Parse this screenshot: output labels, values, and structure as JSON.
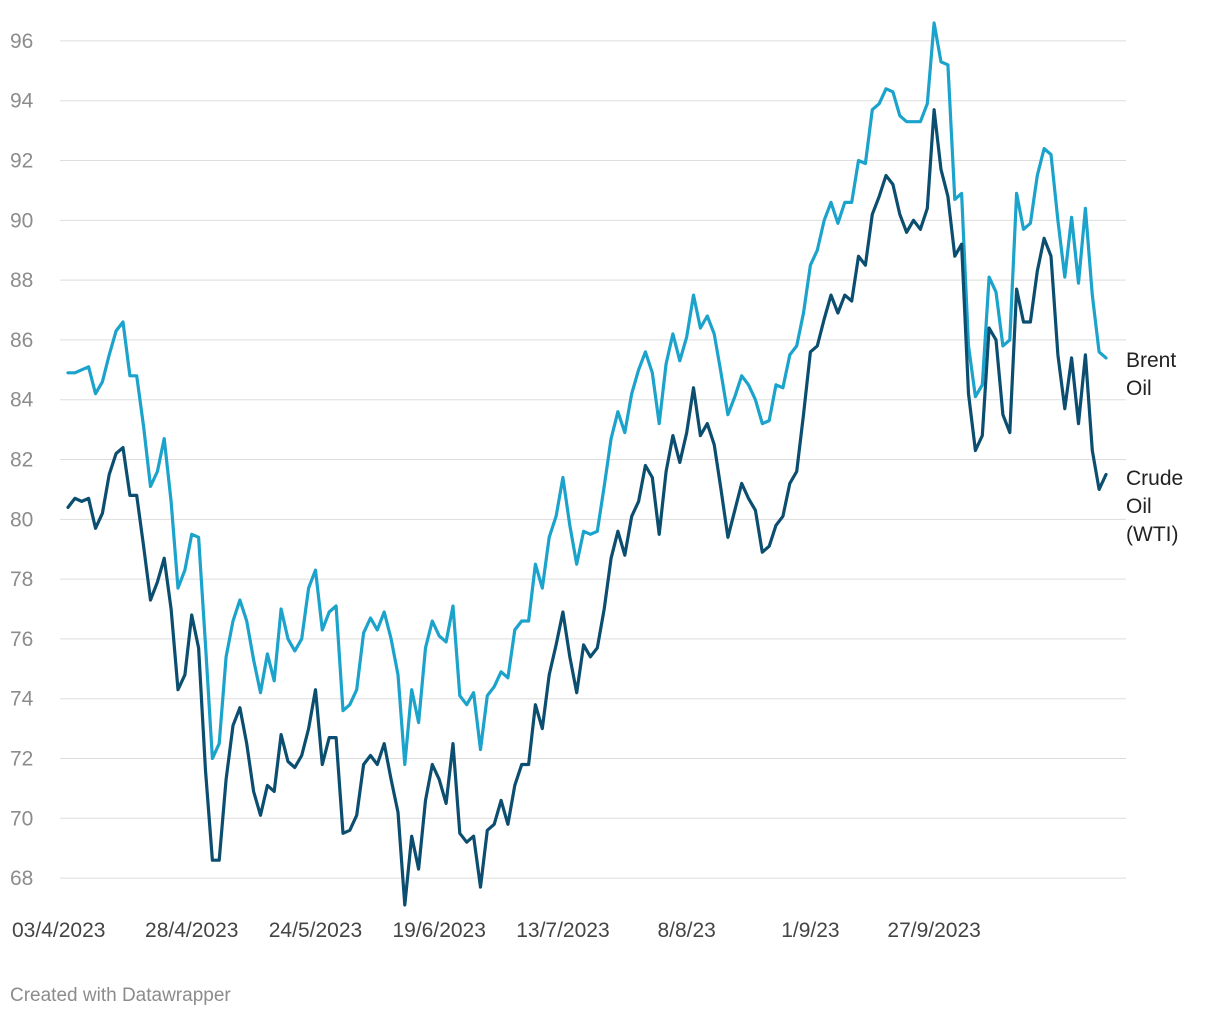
{
  "chart_data": {
    "type": "line",
    "title": "",
    "xlabel": "",
    "ylabel": "",
    "ylim": [
      67,
      96.7
    ],
    "yticks": [
      68,
      70,
      72,
      74,
      76,
      78,
      80,
      82,
      84,
      86,
      88,
      90,
      92,
      94,
      96
    ],
    "xtick_labels": [
      "03/4/2023",
      "28/4/2023",
      "24/5/2023",
      "19/6/2023",
      "13/7/2023",
      "8/8/23",
      "1/9/23",
      "27/9/2023"
    ],
    "xtick_index": [
      0,
      18,
      36,
      54,
      72,
      90,
      108,
      126
    ],
    "grid": true,
    "legend": "inline-right",
    "series": [
      {
        "name": "Brent\nOil",
        "color": "#1ba3cc",
        "values": [
          84.9,
          84.9,
          85.0,
          85.1,
          84.2,
          84.6,
          85.5,
          86.3,
          86.6,
          84.8,
          84.8,
          83.1,
          81.1,
          81.6,
          82.7,
          80.6,
          77.7,
          78.3,
          79.5,
          79.4,
          75.8,
          72.0,
          72.5,
          75.4,
          76.6,
          77.3,
          76.6,
          75.3,
          74.2,
          75.5,
          74.6,
          77.0,
          76.0,
          75.6,
          76.0,
          77.7,
          78.3,
          76.3,
          76.9,
          77.1,
          73.6,
          73.8,
          74.3,
          76.2,
          76.7,
          76.3,
          76.9,
          76.0,
          74.8,
          71.8,
          74.3,
          73.2,
          75.7,
          76.6,
          76.1,
          75.9,
          77.1,
          74.1,
          73.8,
          74.2,
          72.3,
          74.1,
          74.4,
          74.9,
          74.7,
          76.3,
          76.6,
          76.6,
          78.5,
          77.7,
          79.4,
          80.1,
          81.4,
          79.8,
          78.5,
          79.6,
          79.5,
          79.6,
          81.1,
          82.7,
          83.6,
          82.9,
          84.2,
          85.0,
          85.6,
          84.9,
          83.2,
          85.2,
          86.2,
          85.3,
          86.1,
          87.5,
          86.4,
          86.8,
          86.2,
          84.9,
          83.5,
          84.1,
          84.8,
          84.5,
          84.0,
          83.2,
          83.3,
          84.5,
          84.4,
          85.5,
          85.8,
          86.9,
          88.5,
          89.0,
          90.0,
          90.6,
          89.9,
          90.6,
          90.6,
          92.0,
          91.9,
          93.7,
          93.9,
          94.4,
          94.3,
          93.5,
          93.3,
          93.3,
          93.3,
          93.9,
          96.6,
          95.3,
          95.2,
          90.7,
          90.9,
          85.8,
          84.1,
          84.5,
          88.1,
          87.6,
          85.8,
          86.0,
          90.9,
          89.7,
          89.9,
          91.5,
          92.4,
          92.2,
          90.0,
          88.1,
          90.1,
          87.9,
          90.4,
          87.5,
          85.6,
          85.4
        ]
      },
      {
        "name": "Crude\nOil\n(WTI)",
        "color": "#0b4e6f",
        "values": [
          80.4,
          80.7,
          80.6,
          80.7,
          79.7,
          80.2,
          81.5,
          82.2,
          82.4,
          80.8,
          80.8,
          79.1,
          77.3,
          77.9,
          78.7,
          77.0,
          74.3,
          74.8,
          76.8,
          75.7,
          71.6,
          68.6,
          68.6,
          71.3,
          73.1,
          73.7,
          72.5,
          70.9,
          70.1,
          71.1,
          70.9,
          72.8,
          71.9,
          71.7,
          72.1,
          73.0,
          74.3,
          71.8,
          72.7,
          72.7,
          69.5,
          69.6,
          70.1,
          71.8,
          72.1,
          71.8,
          72.5,
          71.3,
          70.2,
          67.1,
          69.4,
          68.3,
          70.6,
          71.8,
          71.3,
          70.5,
          72.5,
          69.5,
          69.2,
          69.4,
          67.7,
          69.6,
          69.8,
          70.6,
          69.8,
          71.1,
          71.8,
          71.8,
          73.8,
          73.0,
          74.8,
          75.8,
          76.9,
          75.4,
          74.2,
          75.8,
          75.4,
          75.7,
          77.0,
          78.7,
          79.6,
          78.8,
          80.1,
          80.6,
          81.8,
          81.4,
          79.5,
          81.6,
          82.8,
          81.9,
          82.9,
          84.4,
          82.8,
          83.2,
          82.5,
          81.0,
          79.4,
          80.3,
          81.2,
          80.7,
          80.3,
          78.9,
          79.1,
          79.8,
          80.1,
          81.2,
          81.6,
          83.5,
          85.6,
          85.8,
          86.7,
          87.5,
          86.9,
          87.5,
          87.3,
          88.8,
          88.5,
          90.2,
          90.8,
          91.5,
          91.2,
          90.2,
          89.6,
          90.0,
          89.7,
          90.4,
          93.7,
          91.7,
          90.8,
          88.8,
          89.2,
          84.2,
          82.3,
          82.8,
          86.4,
          86.0,
          83.5,
          82.9,
          87.7,
          86.6,
          86.6,
          88.3,
          89.4,
          88.8,
          85.5,
          83.7,
          85.4,
          83.2,
          85.5,
          82.3,
          81.0,
          81.5
        ]
      }
    ]
  },
  "footer": {
    "credit": "Created with Datawrapper"
  }
}
